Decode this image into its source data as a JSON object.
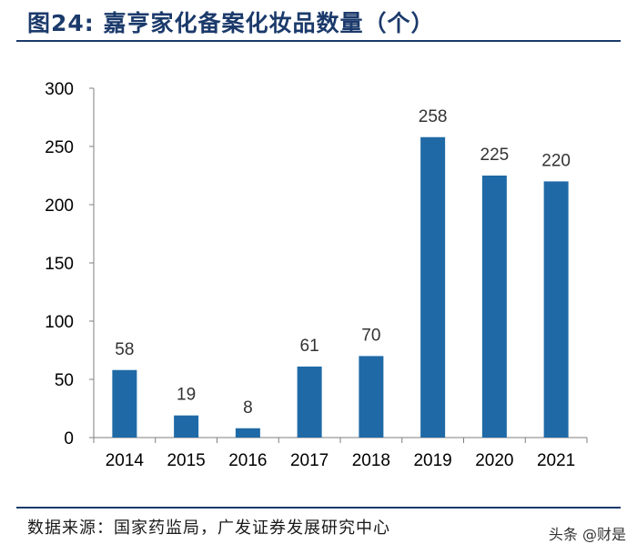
{
  "header": {
    "title": "图24:  嘉亨家化备案化妆品数量（个）"
  },
  "footer": {
    "source": "数据来源：国家药监局，广发证券发展研究中心",
    "watermark": "头条 @财是"
  },
  "colors": {
    "bar": "#1f6aa6",
    "accent": "#1b3a6b",
    "axis": "#7f7f7f"
  },
  "chart_data": {
    "type": "bar",
    "title": "",
    "xlabel": "",
    "ylabel": "",
    "categories": [
      "2014",
      "2015",
      "2016",
      "2017",
      "2018",
      "2019",
      "2020",
      "2021"
    ],
    "values": [
      58,
      19,
      8,
      61,
      70,
      258,
      225,
      220
    ],
    "ylim": [
      0,
      300
    ],
    "yticks": [
      0,
      50,
      100,
      150,
      200,
      250,
      300
    ],
    "data_labels": true,
    "grid": false,
    "legend": "none"
  }
}
